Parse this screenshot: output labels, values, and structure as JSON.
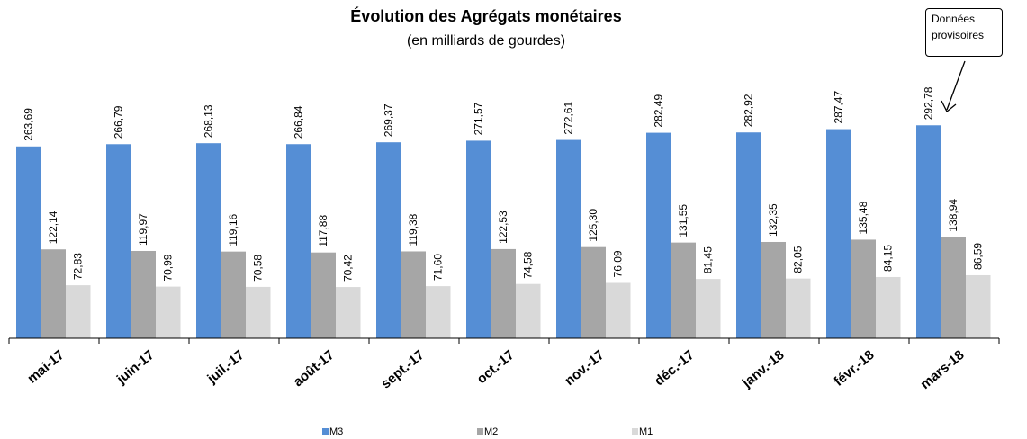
{
  "chart_data": {
    "type": "bar",
    "title": "Évolution des Agrégats monétaires",
    "subtitle": "(en milliards de gourdes)",
    "annotation": "Données provisoires",
    "categories": [
      "mai-17",
      "juin-17",
      "juil.-17",
      "août-17",
      "sept.-17",
      "oct.-17",
      "nov.-17",
      "déc.-17",
      "janv.-18",
      "févr.-18",
      "mars-18"
    ],
    "series": [
      {
        "name": "M3",
        "color": "#558ed5",
        "values": [
          263.69,
          266.79,
          268.13,
          266.84,
          269.37,
          271.57,
          272.61,
          282.49,
          282.92,
          287.47,
          292.78
        ],
        "value_labels": [
          "263,69",
          "266,79",
          "268,13",
          "266,84",
          "269,37",
          "271,57",
          "272,61",
          "282,49",
          "282,92",
          "287,47",
          "292,78"
        ]
      },
      {
        "name": "M2",
        "color": "#a6a6a6",
        "values": [
          122.14,
          119.97,
          119.16,
          117.88,
          119.38,
          122.53,
          125.3,
          131.55,
          132.35,
          135.48,
          138.94
        ],
        "value_labels": [
          "122,14",
          "119,97",
          "119,16",
          "117,88",
          "119,38",
          "122,53",
          "125,30",
          "131,55",
          "132,35",
          "135,48",
          "138,94"
        ]
      },
      {
        "name": "M1",
        "color": "#d9d9d9",
        "values": [
          72.83,
          70.99,
          70.58,
          70.42,
          71.6,
          74.58,
          76.09,
          81.45,
          82.05,
          84.15,
          86.59
        ],
        "value_labels": [
          "72,83",
          "70,99",
          "70,58",
          "70,42",
          "71,60",
          "74,58",
          "76,09",
          "81,45",
          "82,05",
          "84,15",
          "86,59"
        ]
      }
    ],
    "ylim": [
      0,
      350
    ],
    "legend": "bottom"
  }
}
